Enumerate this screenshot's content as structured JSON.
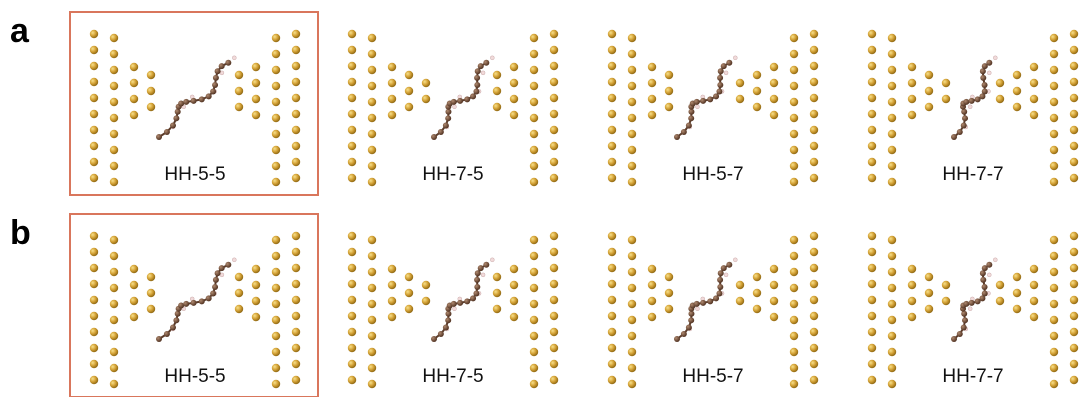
{
  "rows": [
    {
      "label": "a",
      "panels": [
        "HH-5-5",
        "HH-7-5",
        "HH-5-7",
        "HH-7-7"
      ]
    },
    {
      "label": "b",
      "panels": [
        "HH-5-5",
        "HH-7-5",
        "HH-5-7",
        "HH-7-7"
      ]
    }
  ]
}
